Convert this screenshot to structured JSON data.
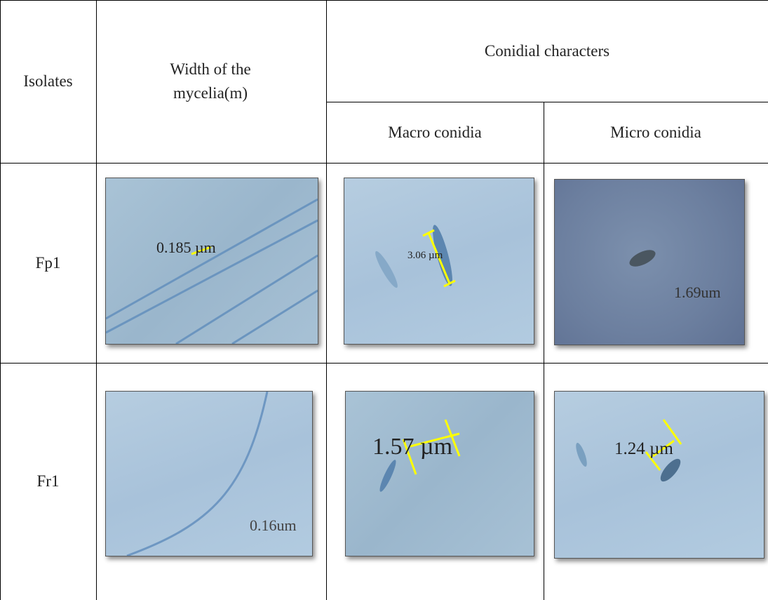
{
  "table": {
    "header": {
      "isolates": "Isolates",
      "width": "Width of the mycelia(m)",
      "conidial": "Conidial characters",
      "macro": "Macro conidia",
      "micro": "Micro conidia"
    },
    "rows": [
      {
        "isolate": "Fp1",
        "images": [
          "0.185 µm",
          "3.06 µm",
          "1.69um"
        ]
      },
      {
        "isolate": "Fr1",
        "images": [
          "0.16um",
          "1.57 µm",
          "1.24 µm"
        ]
      }
    ]
  }
}
